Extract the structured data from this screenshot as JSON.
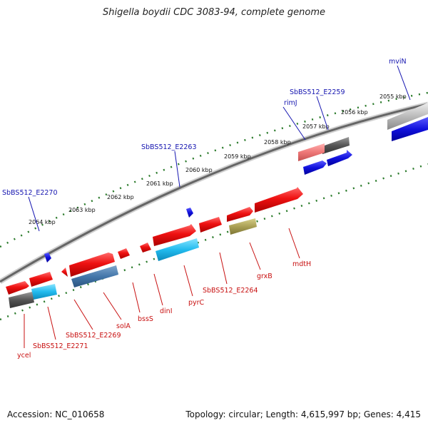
{
  "title": "Shigella boydii CDC 3083-94, complete genome",
  "footer": {
    "accession": "Accession: NC_010658",
    "stats": "Topology: circular; Length: 4,615,997 bp; Genes: 4,415"
  },
  "ticks": [
    "2055 kbp",
    "2056 kbp",
    "2057 kbp",
    "2058 kbp",
    "2059 kbp",
    "2060 kbp",
    "2061 kbp",
    "2062 kbp",
    "2063 kbp",
    "2064 kbp"
  ],
  "labels_top": [
    "mviN",
    "SbBS512_E2259",
    "rimJ",
    "SbBS512_E2263",
    "SbBS512_E2270"
  ],
  "labels_bottom": [
    "mdtH",
    "grxB",
    "SbBS512_E2264",
    "pyrC",
    "dinI",
    "bssS",
    "solA",
    "SbBS512_E2269",
    "SbBS512_E2271",
    "ycel"
  ],
  "colors": {
    "forward_gene": "#ee1111",
    "forward_cds": "#1111dd",
    "reverse_gene": "#ee1111",
    "cyan_cds": "#22bbee",
    "steelblue_cds": "#4477aa",
    "pseudo_gray": "#555555",
    "pink": "#ee7777",
    "olive": "#aaa055",
    "gc_dots": "#2a7a2a"
  }
}
